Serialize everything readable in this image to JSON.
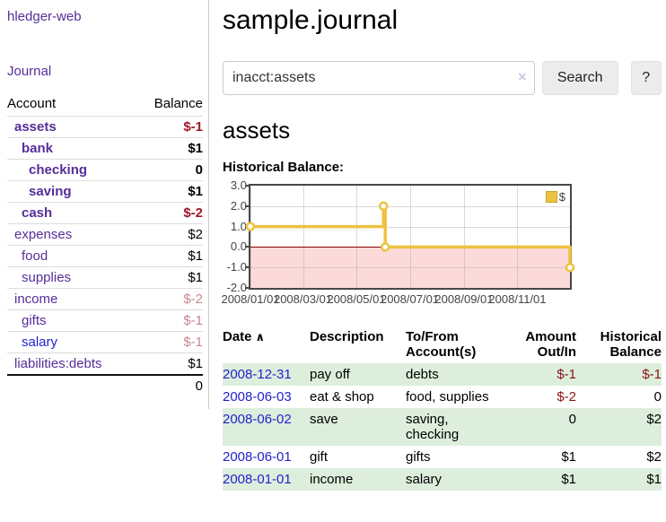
{
  "app": {
    "brand": "hledger-web",
    "nav_journal": "Journal"
  },
  "colors": {
    "link_purple": "#552e99",
    "link_blue": "#2222cc",
    "negative_strong": "#a01828",
    "negative_soft": "#c4898f",
    "negative_table": "#8b1414",
    "row_shade_green": "#ddeedd",
    "chart_series_gold": "#edc240",
    "chart_negative_fill": "#fcdada",
    "chart_zero_line": "#8b0000"
  },
  "sidebar": {
    "columns": {
      "account": "Account",
      "balance": "Balance"
    },
    "accounts": [
      {
        "name": "assets",
        "depth": 1,
        "balance": "$-1",
        "bold": true,
        "neg": "strong"
      },
      {
        "name": "bank",
        "depth": 2,
        "balance": "$1",
        "bold": true,
        "neg": "none"
      },
      {
        "name": "checking",
        "depth": 3,
        "balance": "0",
        "bold": true,
        "neg": "none"
      },
      {
        "name": "saving",
        "depth": 3,
        "balance": "$1",
        "bold": true,
        "neg": "none"
      },
      {
        "name": "cash",
        "depth": 2,
        "balance": "$-2",
        "bold": true,
        "neg": "strong"
      },
      {
        "name": "expenses",
        "depth": 1,
        "balance": "$2",
        "bold": false,
        "neg": "none"
      },
      {
        "name": "food",
        "depth": 2,
        "balance": "$1",
        "bold": false,
        "neg": "none"
      },
      {
        "name": "supplies",
        "depth": 2,
        "balance": "$1",
        "bold": false,
        "neg": "none"
      },
      {
        "name": "income",
        "depth": 1,
        "balance": "$-2",
        "bold": false,
        "neg": "soft"
      },
      {
        "name": "gifts",
        "depth": 2,
        "balance": "$-1",
        "bold": false,
        "neg": "soft"
      },
      {
        "name": "salary",
        "depth": 2,
        "balance": "$-1",
        "bold": false,
        "neg": "soft",
        "link_color": "blue"
      },
      {
        "name": "liabilities:debts",
        "depth": 1,
        "balance": "$1",
        "bold": false,
        "neg": "none"
      }
    ],
    "total": "0"
  },
  "header": {
    "title": "sample.journal"
  },
  "search": {
    "value": "inacct:assets",
    "clear_icon": "×",
    "button_label": "Search",
    "help_label": "?"
  },
  "account_page": {
    "heading": "assets",
    "chart_label": "Historical Balance:"
  },
  "chart_data": {
    "type": "line",
    "step": true,
    "title": "Historical Balance",
    "series": [
      {
        "name": "$",
        "color": "#edc240",
        "points": [
          [
            "2008-01-01",
            1
          ],
          [
            "2008-06-01",
            2
          ],
          [
            "2008-06-03",
            0
          ],
          [
            "2008-12-31",
            -1
          ]
        ]
      }
    ],
    "x_range": [
      "2008-01-01",
      "2008-12-31"
    ],
    "y_range": [
      -2,
      3
    ],
    "y_ticks": [
      3.0,
      2.0,
      1.0,
      0.0,
      -1.0,
      -2.0
    ],
    "x_ticks": [
      "2008/01/01",
      "2008/03/01",
      "2008/05/01",
      "2008/07/01",
      "2008/09/01",
      "2008/11/01"
    ],
    "legend": "$",
    "legend_position": "top-right",
    "grid": true
  },
  "register": {
    "sort_icon": "∧",
    "columns": [
      {
        "label": "Date"
      },
      {
        "label": "Description"
      },
      {
        "label": "To/From Account(s)"
      },
      {
        "label": "Amount Out/In"
      },
      {
        "label": "Historical Balance"
      }
    ],
    "rows": [
      {
        "date": "2008-12-31",
        "description": "pay off",
        "accounts": "debts",
        "amount": "$-1",
        "amount_neg": true,
        "balance": "$-1",
        "balance_neg": true,
        "shaded": true
      },
      {
        "date": "2008-06-03",
        "description": "eat & shop",
        "accounts": "food, supplies",
        "amount": "$-2",
        "amount_neg": true,
        "balance": "0",
        "balance_neg": false,
        "shaded": false
      },
      {
        "date": "2008-06-02",
        "description": "save",
        "accounts": "saving, checking",
        "amount": "0",
        "amount_neg": false,
        "balance": "$2",
        "balance_neg": false,
        "shaded": true
      },
      {
        "date": "2008-06-01",
        "description": "gift",
        "accounts": "gifts",
        "amount": "$1",
        "amount_neg": false,
        "balance": "$2",
        "balance_neg": false,
        "shaded": false
      },
      {
        "date": "2008-01-01",
        "description": "income",
        "accounts": "salary",
        "amount": "$1",
        "amount_neg": false,
        "balance": "$1",
        "balance_neg": false,
        "shaded": true
      }
    ]
  }
}
